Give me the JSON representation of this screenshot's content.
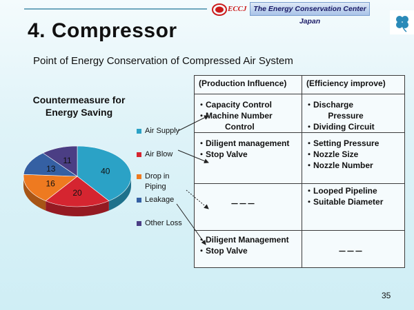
{
  "header": {
    "org_abbrev": "ECCJ",
    "org_name": "The Energy Conservation Center Japan"
  },
  "slide": {
    "title": "4. Compressor",
    "subtitle": "Point of Energy Conservation of Compressed Air System",
    "page_number": "35"
  },
  "chart_data": {
    "type": "pie",
    "title": "Countermeasure for Energy Saving",
    "categories": [
      "Air Supply",
      "Air Blow",
      "Drop in Piping",
      "Leakage",
      "Other Loss"
    ],
    "values": [
      40,
      20,
      16,
      13,
      11
    ],
    "colors": [
      "#2ba2c6",
      "#d52530",
      "#ee7a20",
      "#3560a3",
      "#4b3e84"
    ],
    "legend_position": "right",
    "data_labels": [
      "40",
      "20",
      "16",
      "13",
      "11"
    ]
  },
  "table": {
    "headers": [
      "(Production Influence)",
      "(Efficiency improve)"
    ],
    "rows": [
      {
        "left": "・Capacity Control\n・Machine Number\n            Control",
        "right": "・Discharge\n          Pressure\n・Dividing Circuit"
      },
      {
        "left": "・Diligent management\n・Stop Valve",
        "right": "・Setting Pressure\n・Nozzle Size\n・Nozzle Number"
      },
      {
        "left": "－－－",
        "right": "・Looped Pipeline\n・Suitable Diameter"
      },
      {
        "left": "・Diligent Management\n・Stop Valve",
        "right": "－－－"
      }
    ]
  }
}
